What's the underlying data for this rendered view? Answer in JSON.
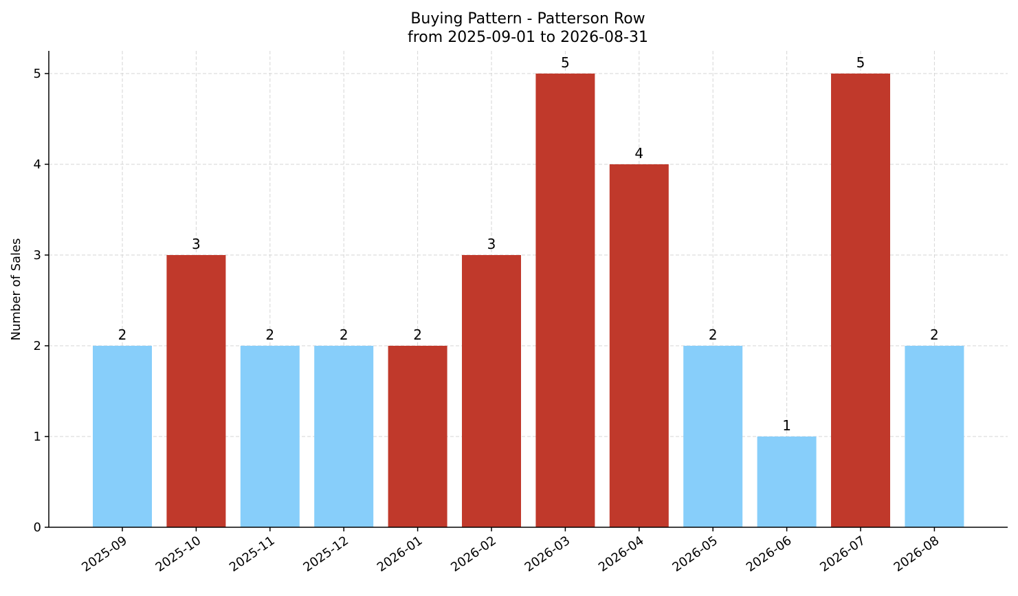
{
  "chart_data": {
    "type": "bar",
    "title": "Buying Pattern - Patterson Row",
    "subtitle": "from 2025-09-01 to 2026-08-31",
    "xlabel": "",
    "ylabel": "Number of Sales",
    "ylim": [
      0,
      5.25
    ],
    "y_ticks": [
      0,
      1,
      2,
      3,
      4,
      5
    ],
    "grid": true,
    "categories": [
      "2025-09",
      "2025-10",
      "2025-11",
      "2025-12",
      "2026-01",
      "2026-02",
      "2026-03",
      "2026-04",
      "2026-05",
      "2026-06",
      "2026-07",
      "2026-08"
    ],
    "values": [
      2,
      3,
      2,
      2,
      2,
      3,
      5,
      4,
      2,
      1,
      5,
      2
    ],
    "bar_colors": [
      "#87CEFA",
      "#C0392B",
      "#87CEFA",
      "#87CEFA",
      "#C0392B",
      "#C0392B",
      "#C0392B",
      "#C0392B",
      "#87CEFA",
      "#87CEFA",
      "#C0392B",
      "#87CEFA"
    ],
    "colors": {
      "light": "#87CEFA",
      "dark": "#C0392B"
    }
  }
}
